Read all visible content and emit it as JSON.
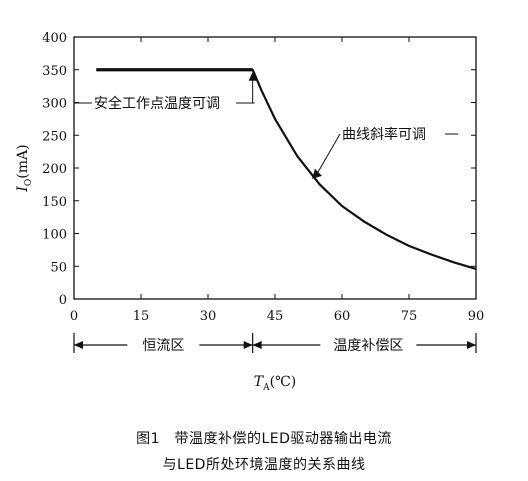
{
  "chart_data": {
    "type": "line",
    "xlabel_main": "T",
    "xlabel_sub": "A",
    "xlabel_unit": "(℃)",
    "ylabel_main": "I",
    "ylabel_sub": "O",
    "ylabel_unit": "(mA)",
    "xlim": [
      0,
      90
    ],
    "ylim": [
      0,
      400
    ],
    "x_ticks": [
      0,
      15,
      30,
      45,
      60,
      75,
      90
    ],
    "y_ticks": [
      0,
      50,
      100,
      150,
      200,
      250,
      300,
      350,
      400
    ],
    "grid": false,
    "series": [
      {
        "x": [
          5,
          10,
          20,
          30,
          40,
          42,
          45,
          50,
          55,
          60,
          65,
          70,
          75,
          80,
          85,
          90
        ],
        "y": [
          350,
          350,
          350,
          350,
          350,
          318,
          275,
          218,
          175,
          142,
          118,
          98,
          81,
          68,
          56,
          46
        ]
      }
    ],
    "annotations": [
      {
        "text": "安全工作点温度可调"
      },
      {
        "text": "曲线斜率可调"
      }
    ],
    "regions": [
      {
        "label": "恒流区",
        "x_range": [
          0,
          40
        ]
      },
      {
        "label": "温度补偿区",
        "x_range": [
          40,
          90
        ]
      }
    ]
  },
  "caption": {
    "line1": "图1　带温度补偿的LED驱动器输出电流",
    "line2": "与LED所处环境温度的关系曲线"
  }
}
